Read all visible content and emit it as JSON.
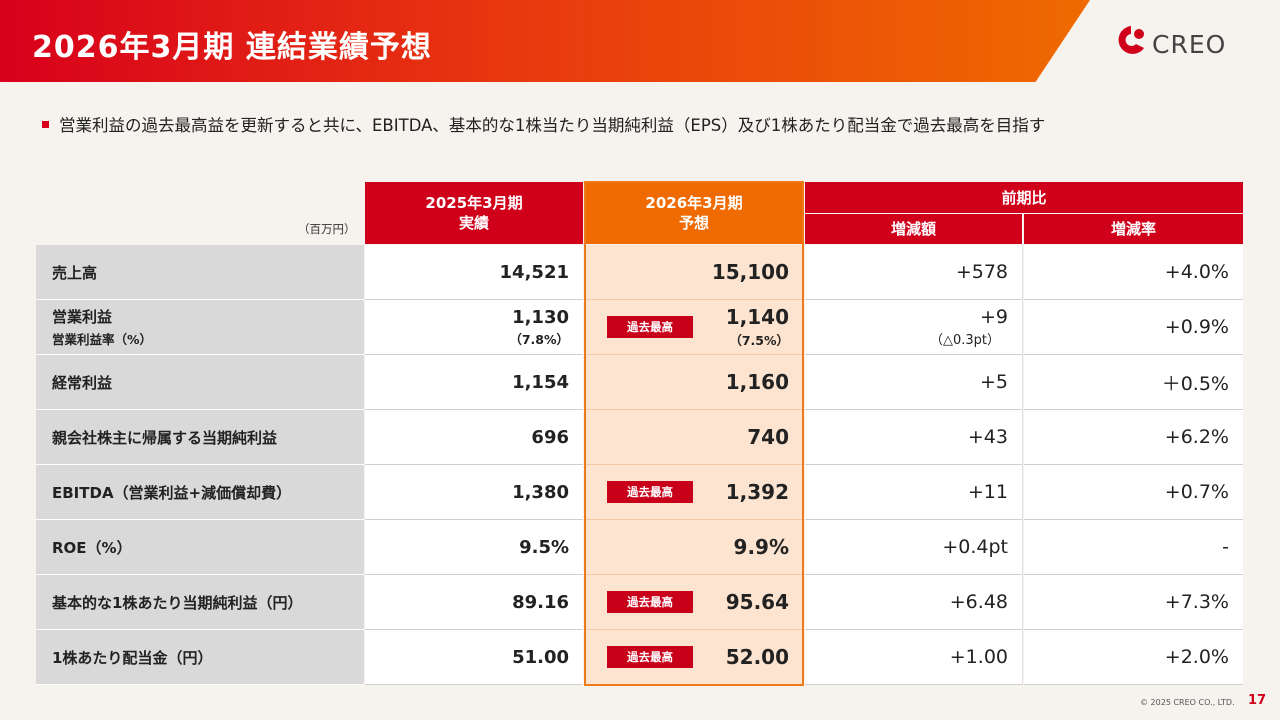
{
  "header": {
    "title": "2026年3月期 連結業績予想",
    "logo_text": "CREO"
  },
  "lead": "営業利益の過去最高益を更新すると共に、EBITDA、基本的な1株当たり当期純利益（EPS）及び1株あたり配当金で過去最高を目指す",
  "table": {
    "unit": "（百万円）",
    "col_actual": [
      "2025年3月期",
      "実績"
    ],
    "col_forecast": [
      "2026年3月期",
      "予想"
    ],
    "col_compare": "前期比",
    "col_diff": "増減額",
    "col_rate": "増減率",
    "record_badge": "過去最高",
    "rows": [
      {
        "label": "売上高",
        "actual": "14,521",
        "forecast": "15,100",
        "diff": "+578",
        "rate": "+4.0%"
      },
      {
        "label": "営業利益",
        "label_sub": "営業利益率（%）",
        "actual": "1,130",
        "actual_sub": "（7.8%）",
        "forecast": "1,140",
        "forecast_sub": "（7.5%）",
        "diff": "+9",
        "diff_sub": "（△0.3pt）",
        "rate": "+0.9%",
        "record": true
      },
      {
        "label": "経常利益",
        "actual": "1,154",
        "forecast": "1,160",
        "diff": "+5",
        "rate": "＋0.5%"
      },
      {
        "label": "親会社株主に帰属する当期純利益",
        "actual": "696",
        "forecast": "740",
        "diff": "+43",
        "rate": "+6.2%"
      },
      {
        "label": "EBITDA（営業利益+減価償却費）",
        "actual": "1,380",
        "forecast": "1,392",
        "diff": "+11",
        "rate": "+0.7%",
        "record": true
      },
      {
        "label": "ROE（%）",
        "actual": "9.5%",
        "forecast": "9.9%",
        "diff": "+0.4pt",
        "rate": "-"
      },
      {
        "label": "基本的な1株あたり当期純利益（円）",
        "actual": "89.16",
        "forecast": "95.64",
        "diff": "+6.48",
        "rate": "+7.3%",
        "record": true
      },
      {
        "label": "1株あたり配当金（円）",
        "actual": "51.00",
        "forecast": "52.00",
        "diff": "+1.00",
        "rate": "+2.0%",
        "record": true
      }
    ]
  },
  "footer": {
    "copyright": "© 2025 CREO CO., LTD.",
    "page": "17"
  },
  "colors": {
    "brand_red": "#d0001b",
    "accent_orange": "#ef6a00",
    "forecast_fill": "#fde4d0",
    "label_fill": "#d9d9d9"
  }
}
